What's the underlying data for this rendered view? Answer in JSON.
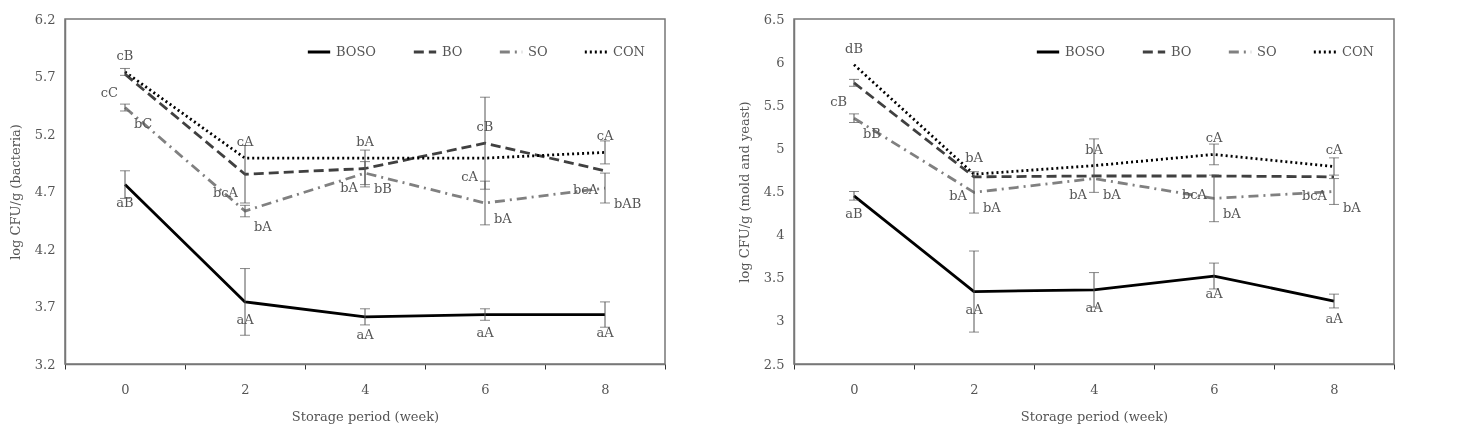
{
  "chart_data": [
    {
      "type": "line",
      "xlabel": "Storage period (week)",
      "ylabel": "log CFU/g (bacteria)",
      "categories": [
        "0",
        "2",
        "4",
        "6",
        "8"
      ],
      "ylim": [
        3.2,
        6.2
      ],
      "yticks": [
        3.2,
        3.7,
        4.2,
        4.7,
        5.2,
        5.7,
        6.2
      ],
      "grid": false,
      "legend": "top right",
      "series": [
        {
          "name": "BOSO",
          "color": "#000000",
          "line_style": "solid",
          "values": [
            4.76,
            3.74,
            3.61,
            3.63,
            3.63
          ],
          "errors": [
            0.12,
            0.29,
            0.07,
            0.05,
            0.11
          ]
        },
        {
          "name": "BO",
          "color": "#404040",
          "line_style": "dashed",
          "values": [
            5.72,
            4.85,
            4.9,
            5.12,
            4.88
          ],
          "errors": [
            null,
            0.25,
            0.16,
            0.4,
            null
          ]
        },
        {
          "name": "SO",
          "color": "#808080",
          "line_style": "dashdot",
          "values": [
            5.43,
            4.53,
            4.86,
            4.6,
            4.73
          ],
          "errors": [
            0.03,
            0.05,
            0.1,
            0.19,
            0.13
          ]
        },
        {
          "name": "CON",
          "color": "#000000",
          "line_style": "dotted",
          "values": [
            5.74,
            4.99,
            4.99,
            4.99,
            5.04
          ],
          "errors": [
            0.03,
            null,
            null,
            null,
            0.1
          ]
        }
      ],
      "annotations": [
        {
          "text": "cB",
          "x": "0",
          "y": 5.74
        },
        {
          "text": "cC",
          "x": "0",
          "y": 5.72
        },
        {
          "text": "bC",
          "x": "0",
          "y": 5.43
        },
        {
          "text": "aB",
          "x": "0",
          "y": 4.76
        },
        {
          "text": "cA",
          "x": "2",
          "y": 4.99
        },
        {
          "text": "bcA",
          "x": "2",
          "y": 4.85
        },
        {
          "text": "bA",
          "x": "2",
          "y": 4.53
        },
        {
          "text": "aA",
          "x": "2",
          "y": 3.74
        },
        {
          "text": "bA",
          "x": "4",
          "y": 4.99
        },
        {
          "text": "bA",
          "x": "4",
          "y": 4.9
        },
        {
          "text": "bB",
          "x": "4",
          "y": 4.86
        },
        {
          "text": "aA",
          "x": "4",
          "y": 3.61
        },
        {
          "text": "cB",
          "x": "6",
          "y": 5.12
        },
        {
          "text": "cA",
          "x": "6",
          "y": 4.99
        },
        {
          "text": "bA",
          "x": "6",
          "y": 4.6
        },
        {
          "text": "aA",
          "x": "6",
          "y": 3.63
        },
        {
          "text": "cA",
          "x": "8",
          "y": 5.04
        },
        {
          "text": "bcA",
          "x": "8",
          "y": 4.88
        },
        {
          "text": "bAB",
          "x": "8",
          "y": 4.73
        },
        {
          "text": "aA",
          "x": "8",
          "y": 3.63
        }
      ]
    },
    {
      "type": "line",
      "xlabel": "Storage period (week)",
      "ylabel": "log CFU/g (mold and yeast)",
      "categories": [
        "0",
        "2",
        "4",
        "6",
        "8"
      ],
      "ylim": [
        2.5,
        6.5
      ],
      "yticks": [
        2.5,
        {
          "value": 3,
          "label": "3"
        },
        3.5,
        {
          "value": 4,
          "label": "4"
        },
        4.5,
        {
          "value": 5,
          "label": "5"
        },
        5.5,
        {
          "value": 6,
          "label": "6"
        },
        6.5
      ],
      "grid": false,
      "legend": "top right",
      "series": [
        {
          "name": "BOSO",
          "color": "#000000",
          "line_style": "solid",
          "values": [
            4.45,
            3.34,
            3.36,
            3.52,
            3.23
          ],
          "errors": [
            0.05,
            0.47,
            0.2,
            0.15,
            0.08
          ]
        },
        {
          "name": "BO",
          "color": "#404040",
          "line_style": "dashed",
          "values": [
            5.76,
            4.67,
            4.68,
            4.68,
            4.67
          ],
          "errors": [
            0.04,
            null,
            null,
            null,
            null
          ]
        },
        {
          "name": "SO",
          "color": "#808080",
          "line_style": "dashdot",
          "values": [
            5.35,
            4.49,
            4.65,
            4.42,
            4.5
          ],
          "errors": [
            0.05,
            0.24,
            null,
            0.27,
            0.15
          ]
        },
        {
          "name": "CON",
          "color": "#000000",
          "line_style": "dotted",
          "values": [
            5.97,
            4.7,
            4.8,
            4.93,
            4.79
          ],
          "errors": [
            null,
            null,
            0.31,
            0.12,
            0.1
          ]
        }
      ],
      "annotations": [
        {
          "text": "dB",
          "x": "0",
          "y": 5.97
        },
        {
          "text": "cB",
          "x": "0",
          "y": 5.76
        },
        {
          "text": "bB",
          "x": "0",
          "y": 5.35
        },
        {
          "text": "aB",
          "x": "0",
          "y": 4.45
        },
        {
          "text": "bA",
          "x": "2",
          "y": 4.7
        },
        {
          "text": "bA",
          "x": "2",
          "y": 4.67
        },
        {
          "text": "bA",
          "x": "2",
          "y": 4.49
        },
        {
          "text": "aA",
          "x": "2",
          "y": 3.34
        },
        {
          "text": "bA",
          "x": "4",
          "y": 4.8
        },
        {
          "text": "bA",
          "x": "4",
          "y": 4.68
        },
        {
          "text": "bA",
          "x": "4",
          "y": 4.65
        },
        {
          "text": "aA",
          "x": "4",
          "y": 3.36
        },
        {
          "text": "cA",
          "x": "6",
          "y": 4.93
        },
        {
          "text": "bcA",
          "x": "6",
          "y": 4.68
        },
        {
          "text": "bA",
          "x": "6",
          "y": 4.42
        },
        {
          "text": "aA",
          "x": "6",
          "y": 3.52
        },
        {
          "text": "cA",
          "x": "8",
          "y": 4.79
        },
        {
          "text": "bcA",
          "x": "8",
          "y": 4.67
        },
        {
          "text": "bA",
          "x": "8",
          "y": 4.5
        },
        {
          "text": "aA",
          "x": "8",
          "y": 3.23
        }
      ]
    }
  ]
}
